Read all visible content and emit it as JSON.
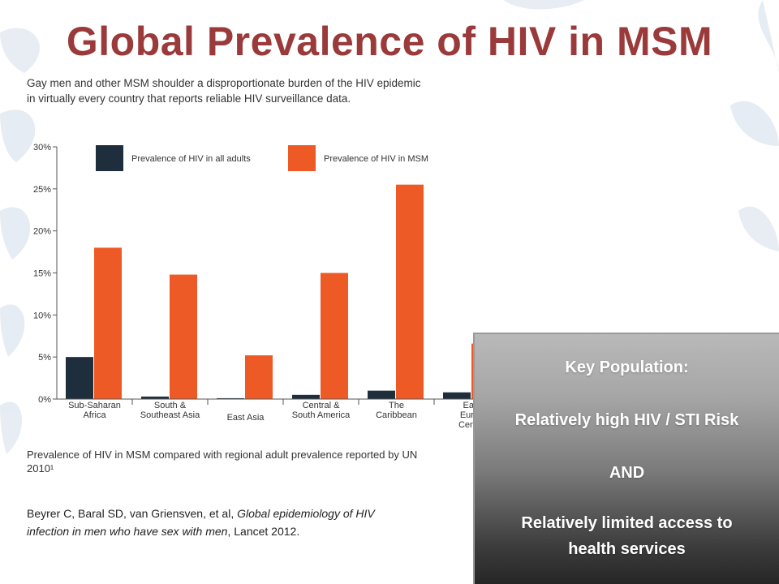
{
  "slide": {
    "title": "Global Prevalence of HIV in MSM",
    "figure_subtitle_line1": "Gay men and other MSM shoulder a disproportionate burden of the HIV epidemic",
    "figure_subtitle_line2": "in virtually every country that reports reliable HIV surveillance data.",
    "figure_caption_line1": "Prevalence of HIV in MSM compared with regional adult prevalence reported by UN",
    "figure_caption_line2": "2010¹",
    "citation_authors": "Beyrer C, Baral SD, van Griensven, et al, ",
    "citation_title_line1": "Global epidemiology of HIV",
    "citation_title_line2": "infection in men who have sex with men",
    "citation_journal": ", Lancet 2012.",
    "callout": {
      "line1": "Key Population:",
      "line2": "Relatively high HIV / STI Risk",
      "line3": "AND",
      "line4": "Relatively limited access to",
      "line5": "health services"
    }
  },
  "colors": {
    "title": "#9b3a3a",
    "all_adults": "#1f2e3c",
    "msm": "#ee5a26"
  },
  "chart_data": {
    "type": "bar",
    "title": "",
    "xlabel": "",
    "ylabel": "",
    "ylim": [
      0,
      30
    ],
    "yticks": [
      "0%",
      "5%",
      "10%",
      "15%",
      "20%",
      "25%",
      "30%"
    ],
    "categories": [
      [
        "Sub-Saharan",
        "Africa"
      ],
      [
        "South &",
        "Southeast Asia"
      ],
      [
        "East Asia"
      ],
      [
        "Central &",
        "South America"
      ],
      [
        "The",
        "Caribbean"
      ],
      [
        "East",
        "Europ",
        "Centra"
      ]
    ],
    "series": [
      {
        "name": "Prevalence of HIV in all adults",
        "values": [
          5.0,
          0.3,
          0.1,
          0.5,
          1.0,
          0.8
        ]
      },
      {
        "name": "Prevalence of HIV in MSM",
        "values": [
          18.0,
          14.8,
          5.2,
          15.0,
          25.5,
          6.6
        ]
      }
    ],
    "legend": "top",
    "grid": false
  }
}
